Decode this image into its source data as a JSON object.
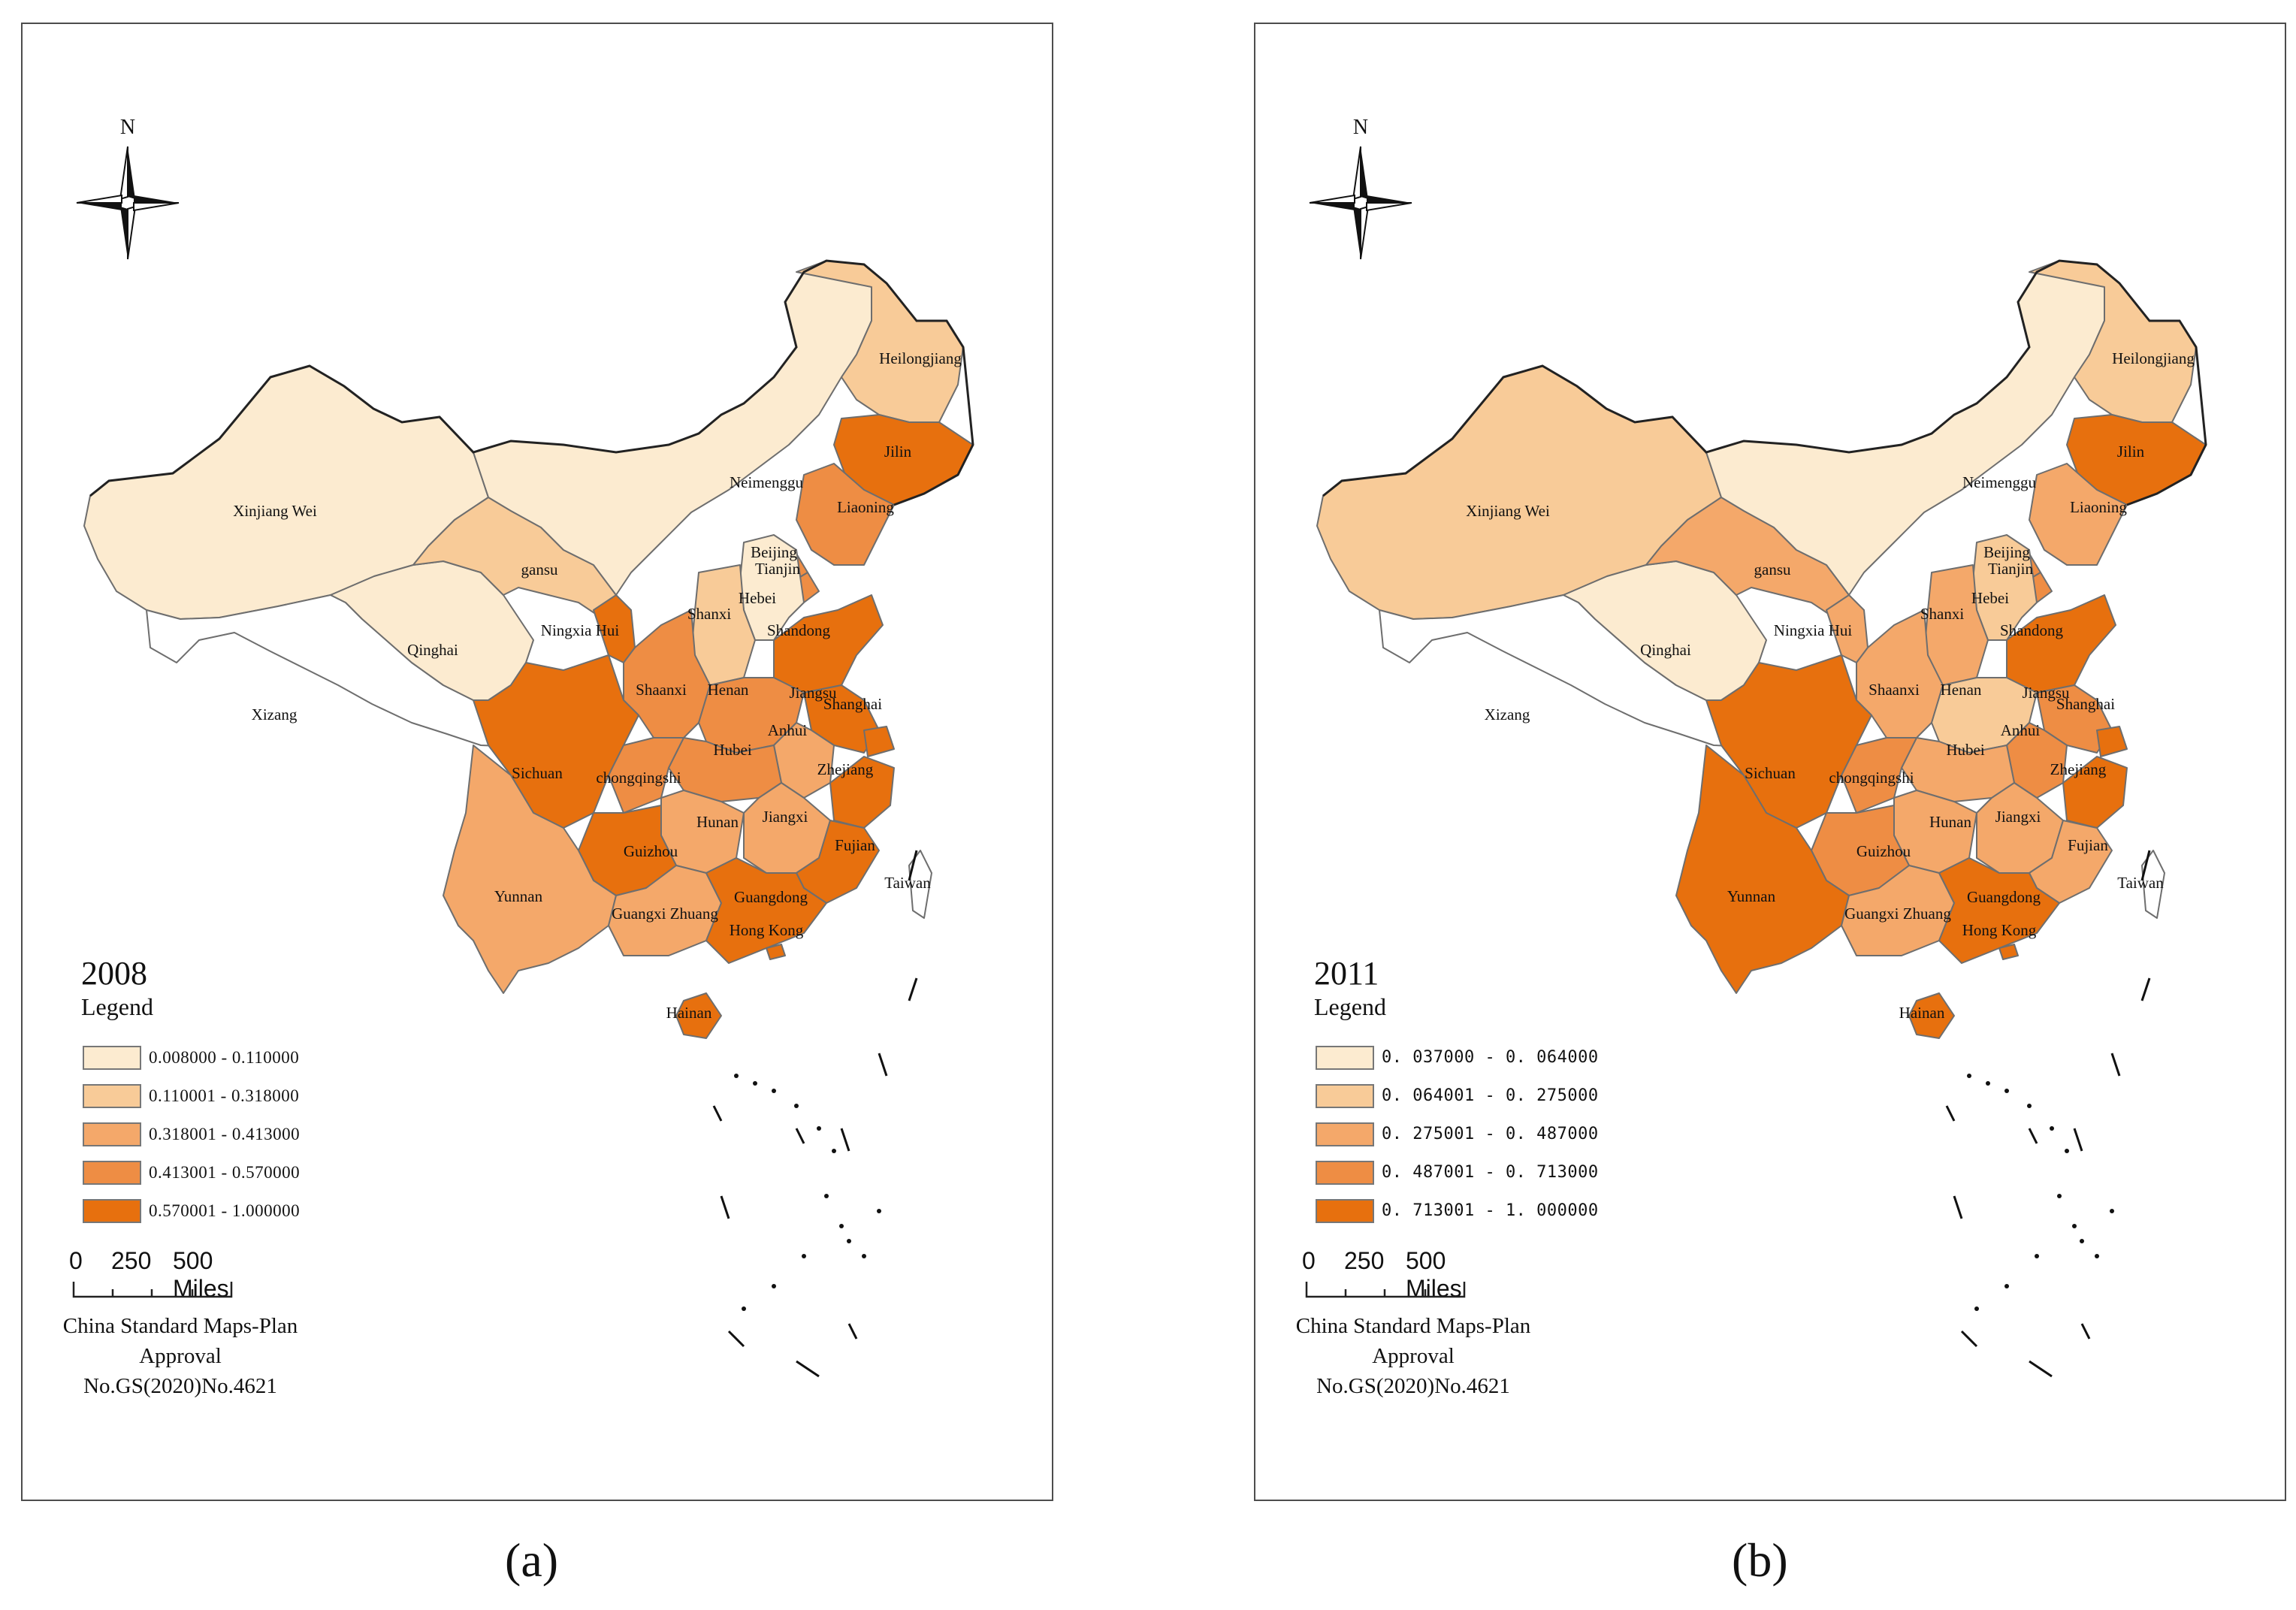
{
  "panels": [
    {
      "id": "a",
      "year": "2008",
      "legend_title": "Legend",
      "legend": [
        {
          "range": "0.008000 - 0.110000",
          "color": "#fcebd0"
        },
        {
          "range": "0.110001 - 0.318000",
          "color": "#f8cb98"
        },
        {
          "range": "0.318001 - 0.413000",
          "color": "#f4a86a"
        },
        {
          "range": "0.413001 - 0.570000",
          "color": "#ee8d44"
        },
        {
          "range": "0.570001 - 1.000000",
          "color": "#e7700e"
        }
      ],
      "provinces": {
        "Heilongjiang": 2,
        "Jilin": 5,
        "Liaoning": 4,
        "Neimenggu": 1,
        "Xinjiang Wei": 1,
        "gansu": 2,
        "Qinghai": 1,
        "Xizang": 0,
        "Ningxia Hui": 5,
        "Beijing": 4,
        "Tianjin": 4,
        "Hebei": 1,
        "Shanxi": 2,
        "Shandong": 5,
        "Shaanxi": 4,
        "Henan": 4,
        "Jiangsu": 5,
        "Shanghai": 5,
        "Anhui": 3,
        "Hubei": 4,
        "Sichuan": 5,
        "chongqingshi": 4,
        "Zhejiang": 5,
        "Hunan": 3,
        "Jiangxi": 3,
        "Guizhou": 5,
        "Fujian": 5,
        "Yunnan": 3,
        "Guangxi Zhuang": 3,
        "Guangdong": 5,
        "Hong Kong": 5,
        "Taiwan": 0,
        "Hainan": 5
      },
      "caption": "(a)"
    },
    {
      "id": "b",
      "year": "2011",
      "legend_title": "Legend",
      "legend": [
        {
          "range": "0. 037000 - 0. 064000",
          "color": "#fcebd0"
        },
        {
          "range": "0. 064001 - 0. 275000",
          "color": "#f8cb98"
        },
        {
          "range": "0. 275001 - 0. 487000",
          "color": "#f4a86a"
        },
        {
          "range": "0. 487001 - 0. 713000",
          "color": "#ee8d44"
        },
        {
          "range": "0. 713001 - 1. 000000",
          "color": "#e7700e"
        }
      ],
      "provinces": {
        "Heilongjiang": 2,
        "Jilin": 5,
        "Liaoning": 3,
        "Neimenggu": 1,
        "Xinjiang Wei": 2,
        "gansu": 3,
        "Qinghai": 1,
        "Xizang": 0,
        "Ningxia Hui": 3,
        "Beijing": 4,
        "Tianjin": 4,
        "Hebei": 2,
        "Shanxi": 3,
        "Shandong": 5,
        "Shaanxi": 3,
        "Henan": 2,
        "Jiangsu": 4,
        "Shanghai": 5,
        "Anhui": 4,
        "Hubei": 3,
        "Sichuan": 5,
        "chongqingshi": 4,
        "Zhejiang": 5,
        "Hunan": 3,
        "Jiangxi": 3,
        "Guizhou": 4,
        "Fujian": 3,
        "Yunnan": 5,
        "Guangxi Zhuang": 3,
        "Guangdong": 5,
        "Hong Kong": 5,
        "Taiwan": 0,
        "Hainan": 5
      },
      "caption": "(b)"
    }
  ],
  "north_label": "N",
  "scale": {
    "labels": [
      "0",
      "250",
      "500 Miles"
    ]
  },
  "approval": {
    "line1": "China Standard Maps-Plan Approval",
    "line2": "No.GS(2020)No.4621"
  }
}
